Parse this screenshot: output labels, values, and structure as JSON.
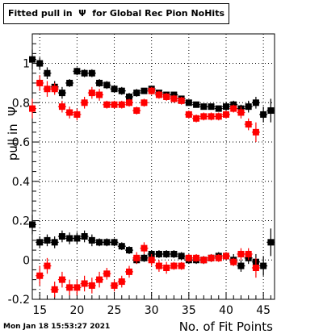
{
  "chart_data": {
    "type": "scatter",
    "title": "Fitted pull in  Ψ  for Global Rec Pion NoHits",
    "xlabel": "No. of Fit Points",
    "ylabel": "pull in  Ψ",
    "xlim": [
      14,
      46.5
    ],
    "ylim": [
      -0.2,
      1.15
    ],
    "x_ticks": [
      15,
      20,
      25,
      30,
      35,
      40,
      45
    ],
    "y_ticks": [
      -0.2,
      0,
      0.2,
      0.4,
      0.6,
      0.8,
      1
    ],
    "grid": true,
    "series": [
      {
        "color": "#000000",
        "x": [
          14,
          15,
          16,
          17,
          18,
          19,
          20,
          21,
          22,
          23,
          24,
          25,
          26,
          27,
          28,
          29,
          30,
          31,
          32,
          33,
          34,
          35,
          36,
          37,
          38,
          39,
          40,
          41,
          42,
          43,
          44,
          45,
          46
        ],
        "y": [
          1.02,
          1.0,
          0.95,
          0.88,
          0.85,
          0.9,
          0.96,
          0.95,
          0.95,
          0.9,
          0.89,
          0.87,
          0.86,
          0.83,
          0.85,
          0.86,
          0.87,
          0.85,
          0.84,
          0.84,
          0.82,
          0.8,
          0.79,
          0.78,
          0.78,
          0.77,
          0.78,
          0.79,
          0.77,
          0.78,
          0.8,
          0.74,
          0.76
        ],
        "yerr": [
          0.05,
          0.03,
          0.03,
          0.03,
          0.03,
          0.02,
          0.02,
          0.02,
          0.02,
          0.02,
          0.02,
          0.02,
          0.02,
          0.02,
          0.02,
          0.01,
          0.01,
          0.01,
          0.01,
          0.01,
          0.01,
          0.01,
          0.01,
          0.01,
          0.01,
          0.01,
          0.02,
          0.02,
          0.02,
          0.03,
          0.03,
          0.04,
          0.06
        ]
      },
      {
        "color": "#ff0000",
        "x": [
          14,
          15,
          16,
          17,
          18,
          19,
          20,
          21,
          22,
          23,
          24,
          25,
          26,
          27,
          28,
          29,
          30,
          31,
          32,
          33,
          34,
          35,
          36,
          37,
          38,
          39,
          40,
          41,
          42,
          43,
          44
        ],
        "y": [
          0.77,
          0.9,
          0.87,
          0.87,
          0.78,
          0.75,
          0.74,
          0.8,
          0.85,
          0.84,
          0.79,
          0.79,
          0.79,
          0.8,
          0.76,
          0.8,
          0.86,
          0.84,
          0.83,
          0.82,
          0.81,
          0.74,
          0.72,
          0.73,
          0.73,
          0.73,
          0.74,
          0.77,
          0.75,
          0.69,
          0.65
        ],
        "yerr": [
          0.05,
          0.04,
          0.04,
          0.03,
          0.03,
          0.03,
          0.03,
          0.03,
          0.03,
          0.03,
          0.02,
          0.02,
          0.02,
          0.02,
          0.02,
          0.02,
          0.02,
          0.02,
          0.02,
          0.02,
          0.02,
          0.02,
          0.02,
          0.02,
          0.02,
          0.02,
          0.02,
          0.02,
          0.03,
          0.03,
          0.05
        ]
      },
      {
        "color": "#000000",
        "x": [
          14,
          15,
          16,
          17,
          18,
          19,
          20,
          21,
          22,
          23,
          24,
          25,
          26,
          27,
          28,
          29,
          30,
          31,
          32,
          33,
          34,
          35,
          36,
          37,
          38,
          39,
          40,
          41,
          42,
          43,
          44,
          45,
          46
        ],
        "y": [
          0.18,
          0.09,
          0.1,
          0.09,
          0.12,
          0.11,
          0.11,
          0.12,
          0.1,
          0.09,
          0.09,
          0.09,
          0.07,
          0.05,
          0.0,
          0.01,
          0.03,
          0.03,
          0.03,
          0.03,
          0.02,
          0.0,
          0.0,
          0.0,
          0.01,
          0.02,
          0.02,
          0.0,
          -0.03,
          0.01,
          -0.01,
          -0.03,
          0.09
        ],
        "yerr": [
          0.05,
          0.03,
          0.03,
          0.03,
          0.03,
          0.03,
          0.03,
          0.03,
          0.03,
          0.02,
          0.02,
          0.02,
          0.02,
          0.02,
          0.02,
          0.02,
          0.02,
          0.02,
          0.02,
          0.02,
          0.02,
          0.02,
          0.02,
          0.02,
          0.02,
          0.02,
          0.02,
          0.03,
          0.03,
          0.03,
          0.04,
          0.05,
          0.07
        ]
      },
      {
        "color": "#ff0000",
        "x": [
          15,
          16,
          17,
          18,
          19,
          20,
          21,
          22,
          23,
          24,
          25,
          26,
          27,
          28,
          29,
          30,
          31,
          32,
          33,
          34,
          35,
          36,
          37,
          38,
          39,
          40,
          41,
          42,
          43,
          44
        ],
        "y": [
          -0.08,
          -0.03,
          -0.15,
          -0.1,
          -0.14,
          -0.14,
          -0.12,
          -0.13,
          -0.1,
          -0.07,
          -0.13,
          -0.11,
          -0.06,
          0.01,
          0.06,
          0.0,
          -0.03,
          -0.04,
          -0.03,
          -0.03,
          0.01,
          0.01,
          0.0,
          0.01,
          0.01,
          0.02,
          -0.01,
          0.03,
          0.03,
          -0.04
        ],
        "yerr": [
          0.05,
          0.04,
          0.04,
          0.04,
          0.04,
          0.04,
          0.04,
          0.04,
          0.04,
          0.03,
          0.03,
          0.03,
          0.03,
          0.03,
          0.03,
          0.03,
          0.03,
          0.03,
          0.02,
          0.02,
          0.02,
          0.02,
          0.02,
          0.02,
          0.02,
          0.02,
          0.02,
          0.03,
          0.03,
          0.05
        ]
      }
    ]
  },
  "timestamp": "Mon Jan 18 15:53:27 2021"
}
